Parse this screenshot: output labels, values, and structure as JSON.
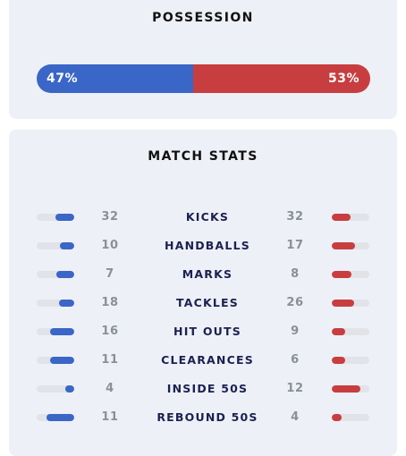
{
  "possession": {
    "title": "POSSESSION",
    "home_pct_label": "47%",
    "away_pct_label": "53%",
    "home_fraction": 0.47,
    "colors": {
      "home": "#3a66c7",
      "away": "#c83e40"
    }
  },
  "match_stats": {
    "title": "MATCH STATS",
    "rows": [
      {
        "label": "KICKS",
        "home": "32",
        "away": "32"
      },
      {
        "label": "HANDBALLS",
        "home": "10",
        "away": "17"
      },
      {
        "label": "MARKS",
        "home": "7",
        "away": "8"
      },
      {
        "label": "TACKLES",
        "home": "18",
        "away": "26"
      },
      {
        "label": "HIT OUTS",
        "home": "16",
        "away": "9"
      },
      {
        "label": "CLEARANCES",
        "home": "11",
        "away": "6"
      },
      {
        "label": "INSIDE 50S",
        "home": "4",
        "away": "12"
      },
      {
        "label": "REBOUND 50S",
        "home": "11",
        "away": "4"
      }
    ]
  }
}
